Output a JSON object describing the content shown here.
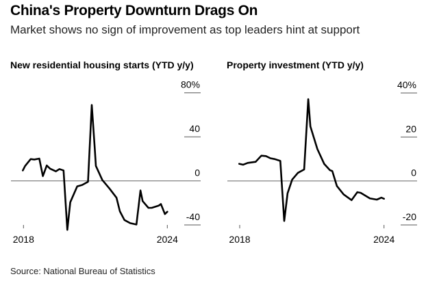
{
  "title": "China's Property Downturn Drags On",
  "subtitle": "Market shows no sign of improvement as top leaders hint at support",
  "source": "Source: National Bureau of Statistics",
  "chart_data": [
    {
      "type": "line",
      "title": "New residential housing starts (YTD y/y)",
      "ylim": [
        -40,
        80
      ],
      "yticks": [
        -40,
        0,
        40,
        80
      ],
      "ytick_labels": [
        "-40",
        "0",
        "40",
        "80%"
      ],
      "xlim": [
        2018,
        2024
      ],
      "xtick_labels": [
        "2018",
        "2024"
      ],
      "xticks": [
        2018,
        2024
      ],
      "color": "#000000",
      "x": [
        2017.97,
        2018.07,
        2018.3,
        2018.45,
        2018.66,
        2018.81,
        2018.97,
        2019.11,
        2019.35,
        2019.5,
        2019.67,
        2019.83,
        2019.95,
        2020.24,
        2020.45,
        2020.69,
        2020.85,
        2020.97,
        2021.02,
        2021.29,
        2021.59,
        2021.88,
        2022.02,
        2022.21,
        2022.45,
        2022.71,
        2022.88,
        2022.97,
        2023.21,
        2023.35,
        2023.64,
        2023.73,
        2023.9,
        2024.0
      ],
      "y": [
        9.5,
        13.6,
        19.8,
        19.4,
        20.2,
        4.3,
        14,
        11.1,
        8.7,
        10.7,
        9.5,
        -44.5,
        -19.4,
        -5,
        -3.7,
        -0.8,
        68.9,
        30.1,
        13.6,
        0.8,
        -7,
        -15.3,
        -27.6,
        -35.5,
        -38.4,
        -39.6,
        -8.7,
        -18.4,
        -24.5,
        -24.5,
        -22.5,
        -21,
        -30.1,
        -28
      ]
    },
    {
      "type": "line",
      "title": "Property investment (YTD y/y)",
      "ylim": [
        -20,
        40
      ],
      "yticks": [
        -20,
        0,
        20,
        40
      ],
      "ytick_labels": [
        "-20",
        "0",
        "20",
        "40%"
      ],
      "xlim": [
        2018,
        2024
      ],
      "xtick_labels": [
        "2018",
        "2024"
      ],
      "xticks": [
        2018,
        2024
      ],
      "color": "#000000",
      "x": [
        2017.98,
        2018.14,
        2018.33,
        2018.66,
        2018.9,
        2019.09,
        2019.28,
        2019.47,
        2019.69,
        2019.85,
        2019.99,
        2020.18,
        2020.42,
        2020.68,
        2020.85,
        2020.94,
        2021.23,
        2021.51,
        2021.75,
        2021.85,
        2022.04,
        2022.32,
        2022.65,
        2022.89,
        2023.03,
        2023.41,
        2023.7,
        2023.89,
        2024.0
      ],
      "y": [
        7.8,
        7.4,
        8.2,
        8.7,
        11.5,
        11.3,
        10.3,
        9.9,
        9.1,
        -18.2,
        -5.6,
        0.6,
        3.7,
        5.2,
        37.2,
        24.8,
        14.5,
        7.8,
        4.9,
        4.5,
        -2.3,
        -6.1,
        -8.7,
        -5.1,
        -5.4,
        -7.9,
        -8.5,
        -7.6,
        -8.1
      ]
    }
  ]
}
